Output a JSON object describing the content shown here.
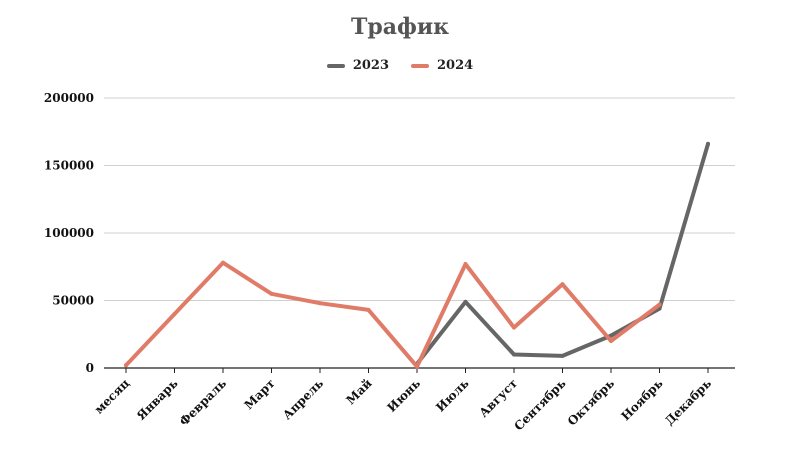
{
  "chart_data": {
    "type": "line",
    "title": "Трафик",
    "xlabel": "",
    "ylabel": "",
    "categories": [
      "месяц",
      "Январь",
      "Февраль",
      "Март",
      "Апрель",
      "Май",
      "Июнь",
      "Июль",
      "Август",
      "Сентябрь",
      "Октябрь",
      "Ноябрь",
      "Декабрь"
    ],
    "ylim": [
      0,
      200000
    ],
    "yticks": [
      "0",
      "50000",
      "100000",
      "150000",
      "200000"
    ],
    "grid": true,
    "legend_position": "top-center",
    "series": [
      {
        "name": "2023",
        "color": "#666666",
        "values": [
          2023,
          null,
          null,
          null,
          null,
          null,
          3000,
          49000,
          10000,
          9000,
          24000,
          44000,
          166000
        ]
      },
      {
        "name": "2024",
        "color": "#E07B68",
        "values": [
          2024,
          40000,
          78000,
          55000,
          48000,
          43000,
          1000,
          77000,
          30000,
          62000,
          20000,
          47000,
          null
        ]
      }
    ]
  }
}
